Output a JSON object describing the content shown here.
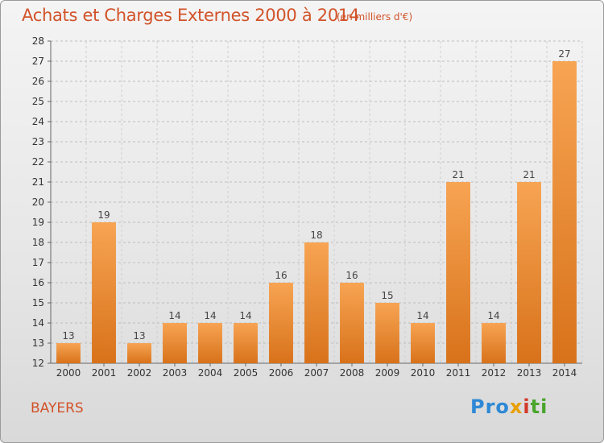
{
  "header": {
    "title": "Achats et Charges Externes 2000 à 2014",
    "subtitle": "(en milliers d'€)"
  },
  "footer": {
    "commune": "BAYERS",
    "brand": {
      "p1": "Pro",
      "p2": "x",
      "p3": "i",
      "p4": "ti"
    }
  },
  "colors": {
    "bar_light": "#f7a453",
    "bar_dark": "#d8721a",
    "text_accent": "#d2532a"
  },
  "chart_data": {
    "type": "bar",
    "title": "Achats et Charges Externes 2000 à 2014",
    "subtitle": "(en milliers d'€)",
    "categories": [
      "2000",
      "2001",
      "2002",
      "2003",
      "2004",
      "2005",
      "2006",
      "2007",
      "2008",
      "2009",
      "2010",
      "2011",
      "2012",
      "2013",
      "2014"
    ],
    "values": [
      13,
      19,
      13,
      14,
      14,
      14,
      16,
      18,
      16,
      15,
      14,
      21,
      14,
      21,
      27
    ],
    "ylim": [
      12,
      28
    ],
    "yticks": [
      12,
      13,
      14,
      15,
      16,
      17,
      18,
      19,
      20,
      21,
      22,
      23,
      24,
      25,
      26,
      27,
      28
    ],
    "grid": true,
    "legend": "none"
  }
}
